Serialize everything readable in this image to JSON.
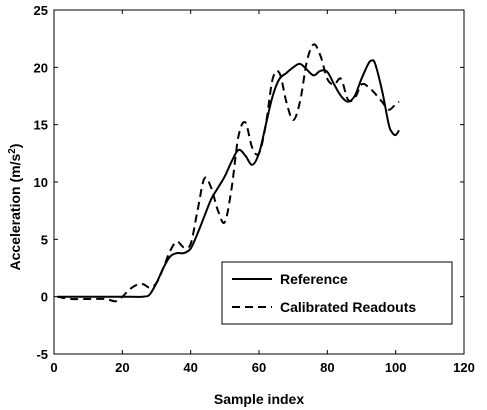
{
  "chart_data": {
    "type": "line",
    "title": "",
    "xlabel": "Sample index",
    "ylabel_main": "Acceleration (m/s",
    "ylabel_sup": "2",
    "ylabel_tail": ")",
    "xlim": [
      0,
      120
    ],
    "ylim": [
      -5,
      25
    ],
    "xticks": [
      0,
      20,
      40,
      60,
      80,
      100,
      120
    ],
    "yticks": [
      -5,
      0,
      5,
      10,
      15,
      20,
      25
    ],
    "grid": false,
    "legend_position": "bottom-right",
    "series": [
      {
        "name": "Reference",
        "style": "solid",
        "color": "#000000",
        "x": [
          1,
          10,
          20,
          26,
          28,
          30,
          32,
          34,
          36,
          38,
          40,
          42,
          44,
          46,
          48,
          50,
          52,
          54,
          56,
          58,
          60,
          62,
          64,
          66,
          68,
          70,
          72,
          74,
          76,
          78,
          80,
          82,
          84,
          86,
          88,
          90,
          92,
          93,
          94,
          96,
          98,
          99,
          100,
          101
        ],
        "y": [
          0,
          0,
          0,
          0,
          0.2,
          1.2,
          2.5,
          3.5,
          3.8,
          3.8,
          4.2,
          5.5,
          7,
          8.5,
          9.5,
          10.5,
          11.8,
          12.8,
          12.3,
          11.5,
          12.5,
          15,
          17.5,
          19,
          19.5,
          20,
          20.3,
          19.8,
          19.3,
          19.7,
          19.6,
          18.5,
          17.5,
          17,
          17.5,
          19,
          20.3,
          20.6,
          20.3,
          18,
          15,
          14.3,
          14.1,
          14.5
        ]
      },
      {
        "name": "Calibrated Readouts",
        "style": "dashed",
        "color": "#000000",
        "x": [
          1,
          5,
          10,
          15,
          18,
          20,
          22,
          24,
          26,
          28,
          30,
          32,
          34,
          36,
          38,
          40,
          42,
          44,
          46,
          48,
          50,
          52,
          54,
          56,
          58,
          60,
          62,
          64,
          66,
          68,
          70,
          72,
          74,
          76,
          78,
          80,
          82,
          84,
          86,
          88,
          90,
          92,
          94,
          96,
          98,
          100,
          101
        ],
        "y": [
          0,
          -0.2,
          -0.2,
          -0.2,
          -0.4,
          0,
          0.6,
          1,
          1.1,
          0.8,
          1.2,
          2.5,
          4,
          4.8,
          4.3,
          4.6,
          7.5,
          10.3,
          9.5,
          7.5,
          6.5,
          9.5,
          14,
          15.2,
          13,
          12.5,
          15,
          19,
          19.5,
          17,
          15.4,
          17,
          20.5,
          22,
          21,
          19,
          18.5,
          19,
          17.2,
          17.3,
          18.5,
          18.3,
          17.7,
          17,
          16.3,
          16.8,
          17
        ]
      }
    ]
  }
}
